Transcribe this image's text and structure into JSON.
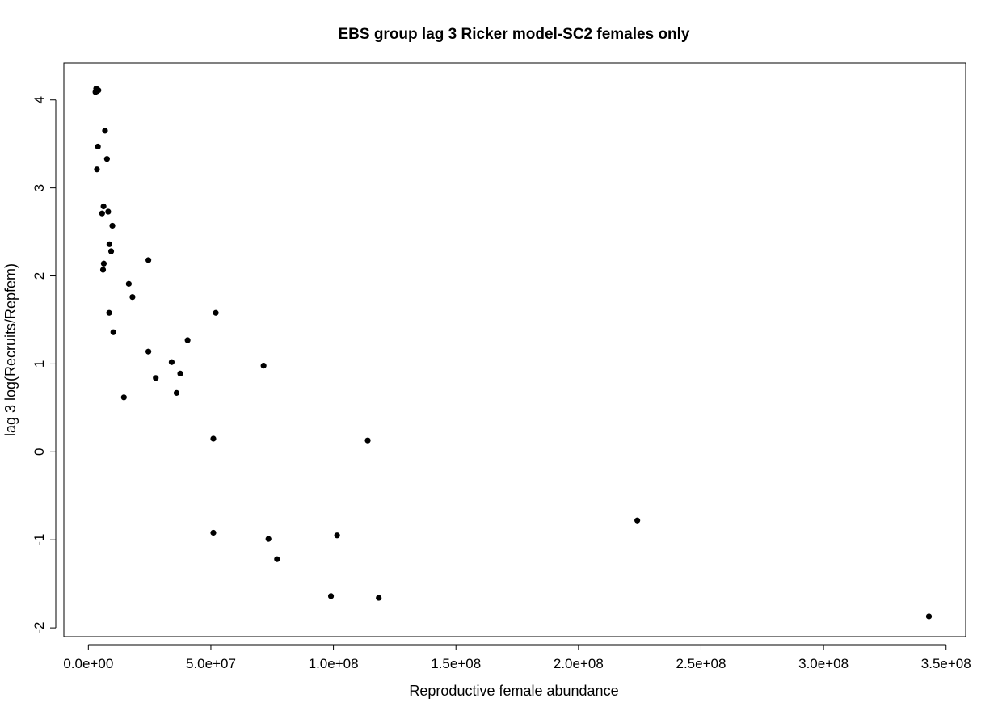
{
  "chart_data": {
    "type": "scatter",
    "title": "EBS group lag 3 Ricker model-SC2 females only",
    "xlabel": "Reproductive female abundance",
    "ylabel": "lag 3 log(Recruits/Repfem)",
    "xlim": [
      -10000000.0,
      358000000.0
    ],
    "ylim": [
      -2.1,
      4.42
    ],
    "x_ticks": [
      0,
      50000000.0,
      100000000.0,
      150000000.0,
      200000000.0,
      250000000.0,
      300000000.0,
      350000000.0
    ],
    "x_tick_labels": [
      "0.0e+00",
      "5.0e+07",
      "1.0e+08",
      "1.5e+08",
      "2.0e+08",
      "2.5e+08",
      "3.0e+08",
      "3.5e+08"
    ],
    "y_ticks": [
      -2,
      -1,
      0,
      1,
      2,
      3,
      4
    ],
    "y_tick_labels": [
      "-2",
      "-1",
      "0",
      "1",
      "2",
      "3",
      "4"
    ],
    "grid": false,
    "legend": "none",
    "marker_color": "#000000",
    "points": [
      {
        "x": 3200000.0,
        "y": 4.13
      },
      {
        "x": 3600000.0,
        "y": 4.1
      },
      {
        "x": 2900000.0,
        "y": 4.09
      },
      {
        "x": 4100000.0,
        "y": 4.11
      },
      {
        "x": 6800000.0,
        "y": 3.65
      },
      {
        "x": 3900000.0,
        "y": 3.47
      },
      {
        "x": 7600000.0,
        "y": 3.33
      },
      {
        "x": 3500000.0,
        "y": 3.21
      },
      {
        "x": 6200000.0,
        "y": 2.79
      },
      {
        "x": 8100000.0,
        "y": 2.73
      },
      {
        "x": 5600000.0,
        "y": 2.71
      },
      {
        "x": 9800000.0,
        "y": 2.57
      },
      {
        "x": 8600000.0,
        "y": 2.36
      },
      {
        "x": 9300000.0,
        "y": 2.28
      },
      {
        "x": 24500000.0,
        "y": 2.18
      },
      {
        "x": 6300000.0,
        "y": 2.14
      },
      {
        "x": 6000000.0,
        "y": 2.07
      },
      {
        "x": 16500000.0,
        "y": 1.91
      },
      {
        "x": 18000000.0,
        "y": 1.76
      },
      {
        "x": 52000000.0,
        "y": 1.58
      },
      {
        "x": 8500000.0,
        "y": 1.58
      },
      {
        "x": 10200000.0,
        "y": 1.36
      },
      {
        "x": 40500000.0,
        "y": 1.27
      },
      {
        "x": 24500000.0,
        "y": 1.14
      },
      {
        "x": 34000000.0,
        "y": 1.02
      },
      {
        "x": 71500000.0,
        "y": 0.98
      },
      {
        "x": 37500000.0,
        "y": 0.89
      },
      {
        "x": 27500000.0,
        "y": 0.84
      },
      {
        "x": 36000000.0,
        "y": 0.67
      },
      {
        "x": 14500000.0,
        "y": 0.62
      },
      {
        "x": 51000000.0,
        "y": 0.15
      },
      {
        "x": 114000000.0,
        "y": 0.13
      },
      {
        "x": 224000000.0,
        "y": -0.78
      },
      {
        "x": 51000000.0,
        "y": -0.92
      },
      {
        "x": 101500000.0,
        "y": -0.95
      },
      {
        "x": 73500000.0,
        "y": -0.99
      },
      {
        "x": 77000000.0,
        "y": -1.22
      },
      {
        "x": 99000000.0,
        "y": -1.64
      },
      {
        "x": 118500000.0,
        "y": -1.66
      },
      {
        "x": 343000000.0,
        "y": -1.87
      }
    ]
  }
}
